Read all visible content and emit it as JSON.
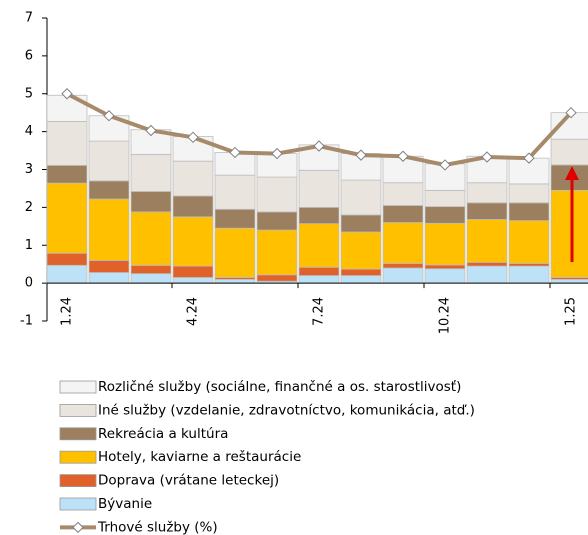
{
  "chart_data": {
    "type": "bar",
    "stacked": true,
    "categories": [
      "1.24",
      null,
      null,
      "4.24",
      null,
      null,
      "7.24",
      null,
      null,
      "10.24",
      null,
      null,
      "1.25"
    ],
    "series": [
      {
        "name": "Bývanie",
        "color": "#bde2f7",
        "values": [
          0.47,
          0.28,
          0.25,
          0.15,
          0.1,
          0.05,
          0.2,
          0.2,
          0.4,
          0.38,
          0.45,
          0.45,
          0.1
        ]
      },
      {
        "name": "Doprava (vrátane leteckej)",
        "color": "#e0622a",
        "values": [
          0.32,
          0.32,
          0.22,
          0.3,
          0.05,
          0.17,
          0.22,
          0.17,
          0.12,
          0.1,
          0.1,
          0.07,
          0.05
        ]
      },
      {
        "name": "Hotely, kaviarne a reštaurácie",
        "color": "#ffc000",
        "values": [
          1.85,
          1.62,
          1.41,
          1.3,
          1.3,
          1.18,
          1.15,
          0.98,
          1.08,
          1.1,
          1.13,
          1.13,
          2.3
        ]
      },
      {
        "name": "Rekreácia a kultúra",
        "color": "#9c7f5e",
        "values": [
          0.47,
          0.48,
          0.54,
          0.55,
          0.5,
          0.48,
          0.43,
          0.45,
          0.45,
          0.44,
          0.44,
          0.47,
          0.67
        ]
      },
      {
        "name": "Iné služby (vzdelanie, zdravotníctvo, komunikácia, atď.)",
        "color": "#e9e4de",
        "values": [
          1.16,
          1.05,
          0.98,
          0.92,
          0.9,
          0.92,
          0.98,
          0.92,
          0.6,
          0.43,
          0.53,
          0.5,
          0.68
        ]
      },
      {
        "name": "Rozličné služby (sociálne, finančné a os. starostlivosť)",
        "color": "#f4f4f4",
        "values": [
          0.69,
          0.67,
          0.65,
          0.65,
          0.6,
          0.62,
          0.67,
          0.7,
          0.7,
          0.7,
          0.7,
          0.68,
          0.7
        ]
      },
      {
        "name": "Trhové služby (%)",
        "type": "line",
        "color": "#a68a6a",
        "values": [
          5.0,
          4.42,
          4.03,
          3.85,
          3.45,
          3.42,
          3.62,
          3.38,
          3.35,
          3.12,
          3.33,
          3.3,
          4.5
        ]
      }
    ],
    "ylim": [
      -1,
      7
    ],
    "yticks": [
      -1,
      0,
      1,
      2,
      3,
      4,
      5,
      6,
      7
    ]
  }
}
